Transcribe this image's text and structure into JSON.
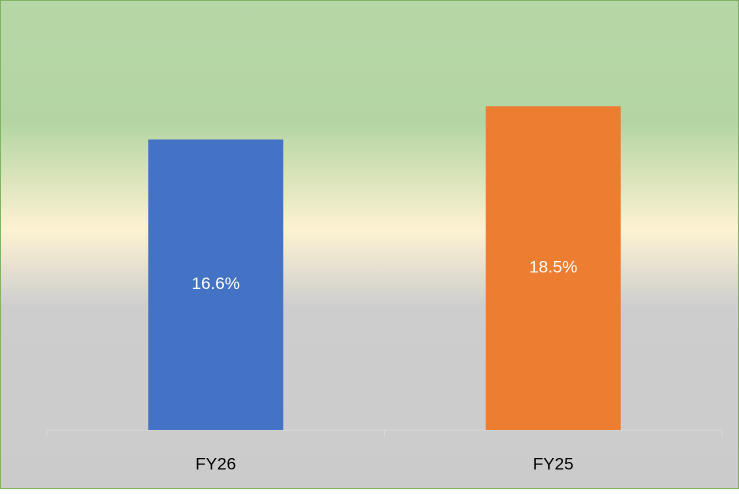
{
  "chart_data": {
    "type": "bar",
    "categories": [
      "FY26",
      "FY25"
    ],
    "values": [
      16.6,
      18.5
    ],
    "value_labels": [
      "16.6%",
      "18.5%"
    ],
    "colors": [
      "#4472c4",
      "#ed7d31"
    ],
    "ylim": [
      0,
      24
    ]
  }
}
